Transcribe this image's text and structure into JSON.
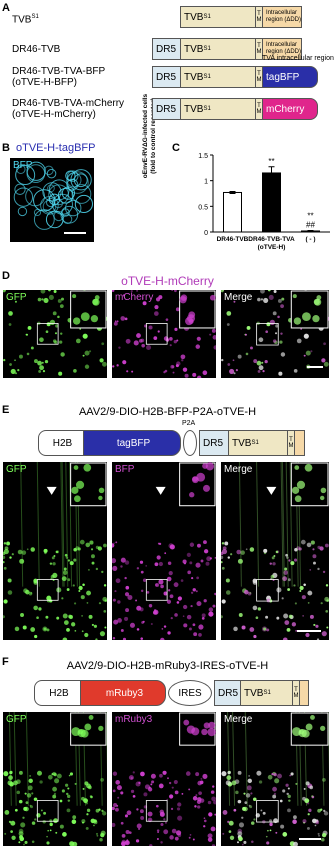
{
  "panel_a": {
    "label": "A",
    "constructs": [
      {
        "name": "TVB",
        "name_sup": "S1",
        "tvb": "TVB",
        "tvb_sup": "S1",
        "tm": "TM",
        "tail": "Intracellular region (ΔDD)"
      },
      {
        "name": "DR46-TVB",
        "dr5": "DR5",
        "tvb": "TVB",
        "tvb_sup": "S1",
        "tm": "TM",
        "tail": "Intracellular region (ΔDD)"
      },
      {
        "name": "DR46-TVB-TVA-BFP\n(oTVE-H-BFP)",
        "dr5": "DR5",
        "tvb": "TVB",
        "tvb_sup": "S1",
        "tm": "TM",
        "tail": "tagBFP",
        "note": "TVA intracellular region"
      },
      {
        "name": "DR46-TVB-TVA-mCherry\n(oTVE-H-mCherry)",
        "dr5": "DR5",
        "tvb": "TVB",
        "tvb_sup": "S1",
        "tm": "TM",
        "tail": "mCherry"
      }
    ]
  },
  "panel_b": {
    "label": "B",
    "title": "oTVE-H-tagBFP",
    "channel": "BFP"
  },
  "panel_c": {
    "label": "C"
  },
  "chart_data": {
    "type": "bar",
    "y_label": "oEnvE-RVΔG-infected cells\n(fold to control receptor)",
    "categories": [
      "DR46-TVB",
      "DR46-TVB-TVA\n(oTVE-H)",
      "( - )"
    ],
    "values": [
      0.77,
      1.15,
      0.02
    ],
    "errors": [
      0.02,
      0.12,
      0.01
    ],
    "colors": [
      "#ffffff",
      "#000000",
      "#ffffff"
    ],
    "significance": [
      null,
      "**",
      "**"
    ],
    "significance_2": [
      null,
      null,
      "##"
    ],
    "ylim": [
      0,
      1.5
    ],
    "yticks": [
      0,
      0.5,
      1,
      1.5
    ]
  },
  "panel_d": {
    "label": "D",
    "title": "oTVE-H-mCherry",
    "channels": [
      "GFP",
      "mCherry",
      "Merge"
    ]
  },
  "panel_e": {
    "label": "E",
    "title": "AAV2/9-DIO-H2B-BFP-P2A-oTVE-H",
    "construct": {
      "h2b": "H2B",
      "reporter": "tagBFP",
      "linker": "P2A",
      "dr5": "DR5",
      "tvb": "TVB",
      "tvb_sup": "S1",
      "tm": "TM"
    },
    "channels": [
      "GFP",
      "BFP",
      "Merge"
    ]
  },
  "panel_f": {
    "label": "F",
    "title": "AAV2/9-DIO-H2B-mRuby3-IRES-oTVE-H",
    "construct": {
      "h2b": "H2B",
      "reporter": "mRuby3",
      "linker": "IRES",
      "dr5": "DR5",
      "tvb": "TVB",
      "tvb_sup": "S1",
      "tm": "TM"
    },
    "channels": [
      "GFP",
      "mRuby3",
      "Merge"
    ]
  }
}
